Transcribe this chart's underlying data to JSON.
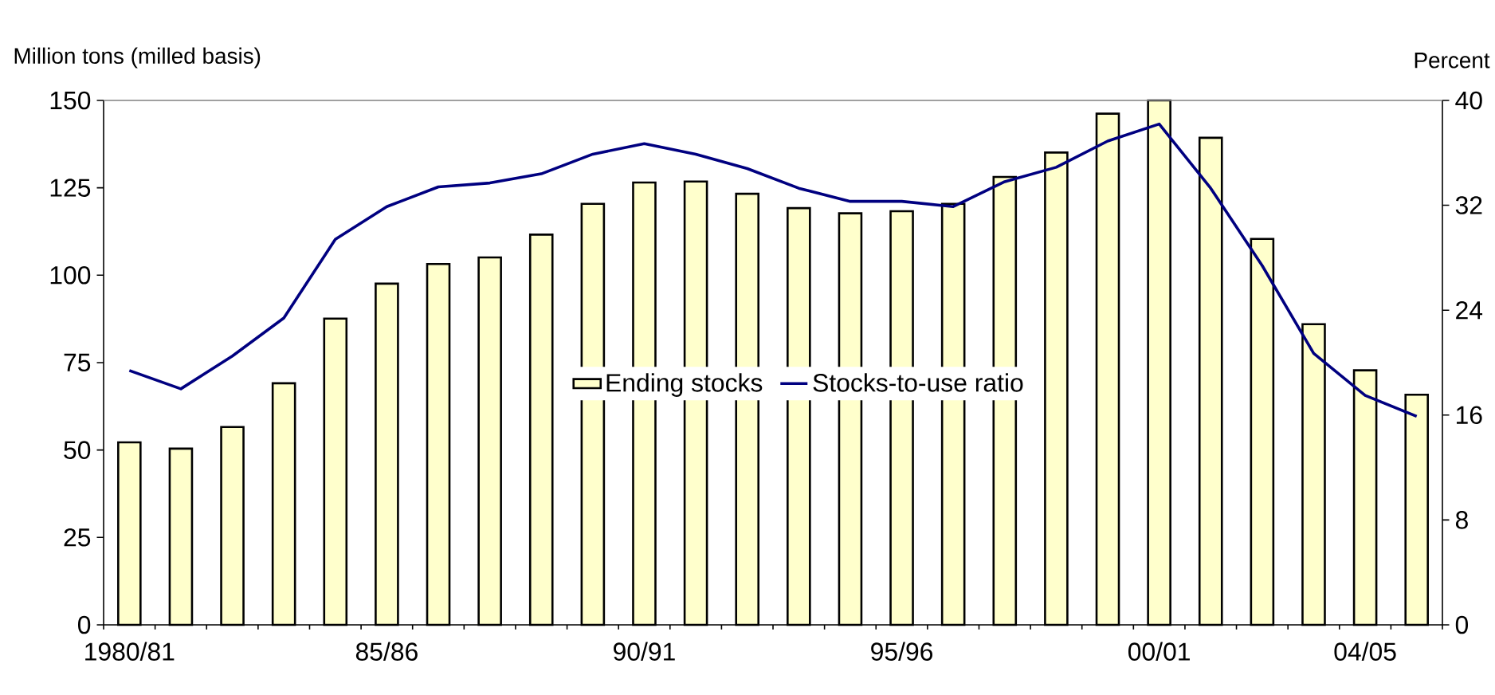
{
  "chart_data": {
    "type": "bar",
    "xlabel": null,
    "ylabel": "Million tons (milled basis)",
    "y2label": "Percent",
    "categories": [
      "1980/81",
      null,
      null,
      null,
      null,
      "85/86",
      null,
      null,
      null,
      null,
      "90/91",
      null,
      null,
      null,
      null,
      "95/96",
      null,
      null,
      null,
      null,
      "00/01",
      null,
      null,
      null,
      "04/05",
      null
    ],
    "series": [
      {
        "name": "Ending stocks",
        "color": "#ffffcc",
        "values": [
          52.2,
          50.4,
          56.6,
          69.1,
          87.6,
          97.6,
          103.2,
          105.1,
          111.6,
          120.4,
          126.5,
          126.8,
          123.3,
          119.2,
          117.7,
          118.3,
          120.4,
          128.1,
          135.1,
          146.2,
          150,
          139.3,
          110.4,
          86.0,
          72.8,
          65.8
        ]
      },
      {
        "name": "Stocks-to-use ratio",
        "type": "line",
        "axis": "y2",
        "color": "#000080",
        "values": [
          19.4,
          18.0,
          20.5,
          23.4,
          29.4,
          31.9,
          33.4,
          33.7,
          34.4,
          35.9,
          36.7,
          35.9,
          34.8,
          33.3,
          32.3,
          32.3,
          31.9,
          33.8,
          34.9,
          36.9,
          38.2,
          33.3,
          27.4,
          20.7,
          17.5,
          15.9
        ]
      }
    ],
    "ylim": [
      0,
      150
    ],
    "yticks": [
      0,
      25,
      50,
      75,
      100,
      125,
      150
    ],
    "y2lim": [
      0,
      40
    ],
    "y2ticks": [
      0,
      8,
      16,
      24,
      32,
      40
    ],
    "legend": "center"
  }
}
